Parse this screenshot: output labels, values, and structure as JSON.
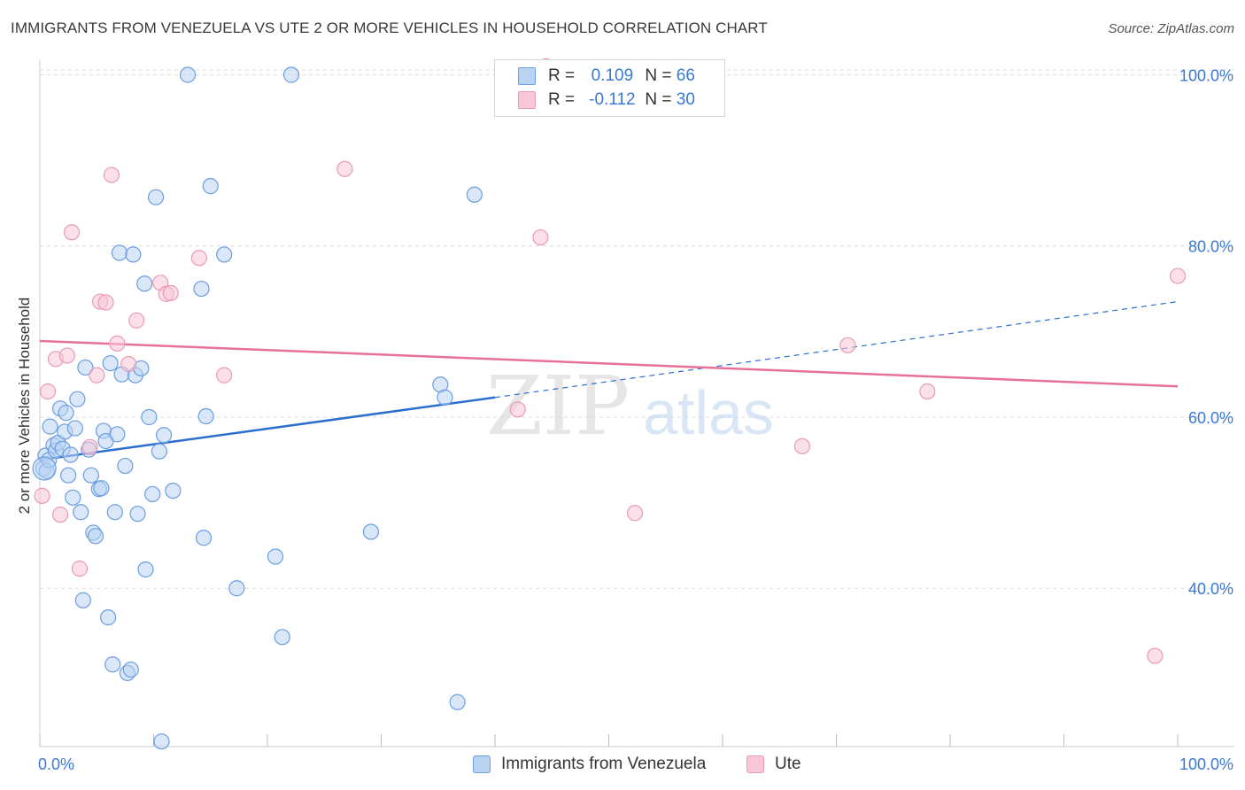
{
  "title": "IMMIGRANTS FROM VENEZUELA VS UTE 2 OR MORE VEHICLES IN HOUSEHOLD CORRELATION CHART",
  "source": "Source: ZipAtlas.com",
  "watermark": {
    "zip": "ZIP",
    "atlas": "atlas"
  },
  "legend": {
    "r_label": "R =",
    "n_label": "N =",
    "rows": [
      {
        "r": "0.109",
        "n": "66"
      },
      {
        "r": "-0.112",
        "n": "30"
      }
    ]
  },
  "colors": {
    "blue_fill": "#b9d3f3",
    "blue_stroke": "#6a9ee0",
    "blue_line": "#2a6fd0",
    "pink_fill": "#f8c6d6",
    "pink_stroke": "#e99ab5",
    "pink_line": "#e8709a",
    "tick_label": "#3a78d4",
    "grid": "#dcdcdc"
  },
  "chart_data": {
    "type": "scatter",
    "title": "IMMIGRANTS FROM VENEZUELA VS UTE 2 OR MORE VEHICLES IN HOUSEHOLD CORRELATION CHART",
    "xlabel": "",
    "ylabel": "2 or more Vehicles in Household",
    "xlim": [
      0,
      100
    ],
    "ylim": [
      21.5,
      101.5
    ],
    "x_tick_labels": [
      "0.0%",
      "100.0%"
    ],
    "y_ticks": [
      40,
      60,
      80,
      100
    ],
    "y_tick_labels": [
      "40.0%",
      "60.0%",
      "80.0%",
      "100.0%"
    ],
    "grid": true,
    "legend_position": "bottom",
    "series": [
      {
        "name": "Immigrants from Venezuela",
        "color": "#6a9ee0",
        "R": 0.109,
        "N": 66,
        "trend": {
          "x": [
            0,
            40
          ],
          "y": [
            55,
            62.3
          ],
          "dashed_to": [
            100,
            73.5
          ]
        },
        "points": [
          [
            0.3,
            54.0
          ],
          [
            0.5,
            55.5
          ],
          [
            0.6,
            53.7
          ],
          [
            0.8,
            55.0
          ],
          [
            0.9,
            58.9
          ],
          [
            1.2,
            56.7
          ],
          [
            1.4,
            56.1
          ],
          [
            1.6,
            57.0
          ],
          [
            1.8,
            61.0
          ],
          [
            2.0,
            56.3
          ],
          [
            2.2,
            58.3
          ],
          [
            2.3,
            60.5
          ],
          [
            2.5,
            53.2
          ],
          [
            2.7,
            55.6
          ],
          [
            2.9,
            50.6
          ],
          [
            3.1,
            58.7
          ],
          [
            3.3,
            62.1
          ],
          [
            3.6,
            48.9
          ],
          [
            3.8,
            38.6
          ],
          [
            4.0,
            65.8
          ],
          [
            4.3,
            56.2
          ],
          [
            4.5,
            53.2
          ],
          [
            4.7,
            46.5
          ],
          [
            4.9,
            46.1
          ],
          [
            5.2,
            51.6
          ],
          [
            5.4,
            51.7
          ],
          [
            5.6,
            58.4
          ],
          [
            5.8,
            57.2
          ],
          [
            6.0,
            36.6
          ],
          [
            6.2,
            66.3
          ],
          [
            6.4,
            31.1
          ],
          [
            6.6,
            48.9
          ],
          [
            6.8,
            58.0
          ],
          [
            7.0,
            79.2
          ],
          [
            7.2,
            65.0
          ],
          [
            7.5,
            54.3
          ],
          [
            7.7,
            30.1
          ],
          [
            8.0,
            30.5
          ],
          [
            8.2,
            79.0
          ],
          [
            8.4,
            64.9
          ],
          [
            8.6,
            48.7
          ],
          [
            8.9,
            65.7
          ],
          [
            9.2,
            75.6
          ],
          [
            9.3,
            42.2
          ],
          [
            9.6,
            60.0
          ],
          [
            9.9,
            51.0
          ],
          [
            10.2,
            85.7
          ],
          [
            10.5,
            56.0
          ],
          [
            10.7,
            22.1
          ],
          [
            10.9,
            57.9
          ],
          [
            11.7,
            51.4
          ],
          [
            13.0,
            100.0
          ],
          [
            14.2,
            75.0
          ],
          [
            14.4,
            45.9
          ],
          [
            14.6,
            60.1
          ],
          [
            15.0,
            87.0
          ],
          [
            16.2,
            79.0
          ],
          [
            17.3,
            40.0
          ],
          [
            20.7,
            43.7
          ],
          [
            21.3,
            34.3
          ],
          [
            22.1,
            100.0
          ],
          [
            29.1,
            46.6
          ],
          [
            35.2,
            63.8
          ],
          [
            35.6,
            62.3
          ],
          [
            36.7,
            26.7
          ],
          [
            38.2,
            86.0
          ]
        ]
      },
      {
        "name": "Ute",
        "color": "#e99ab5",
        "R": -0.112,
        "N": 30,
        "trend": {
          "x": [
            0,
            100
          ],
          "y": [
            68.9,
            63.6
          ]
        },
        "points": [
          [
            0.2,
            50.8
          ],
          [
            0.7,
            63.0
          ],
          [
            1.4,
            66.8
          ],
          [
            1.8,
            48.6
          ],
          [
            2.4,
            67.2
          ],
          [
            2.8,
            81.6
          ],
          [
            3.5,
            42.3
          ],
          [
            4.4,
            56.5
          ],
          [
            5.0,
            64.9
          ],
          [
            5.3,
            73.5
          ],
          [
            5.8,
            73.4
          ],
          [
            6.3,
            88.3
          ],
          [
            6.8,
            68.6
          ],
          [
            7.8,
            66.2
          ],
          [
            8.5,
            71.3
          ],
          [
            10.6,
            75.7
          ],
          [
            11.1,
            74.4
          ],
          [
            11.5,
            74.5
          ],
          [
            14.0,
            78.6
          ],
          [
            16.2,
            64.9
          ],
          [
            26.8,
            89.0
          ],
          [
            42.0,
            60.9
          ],
          [
            44.0,
            81.0
          ],
          [
            52.3,
            48.8
          ],
          [
            67.0,
            56.6
          ],
          [
            71.0,
            68.4
          ],
          [
            78.0,
            63.0
          ],
          [
            98.0,
            32.1
          ],
          [
            100.0,
            76.5
          ],
          [
            44.5,
            101.0
          ]
        ]
      }
    ]
  },
  "bottom_legend": [
    {
      "label": "Immigrants from Venezuela"
    },
    {
      "label": "Ute"
    }
  ]
}
